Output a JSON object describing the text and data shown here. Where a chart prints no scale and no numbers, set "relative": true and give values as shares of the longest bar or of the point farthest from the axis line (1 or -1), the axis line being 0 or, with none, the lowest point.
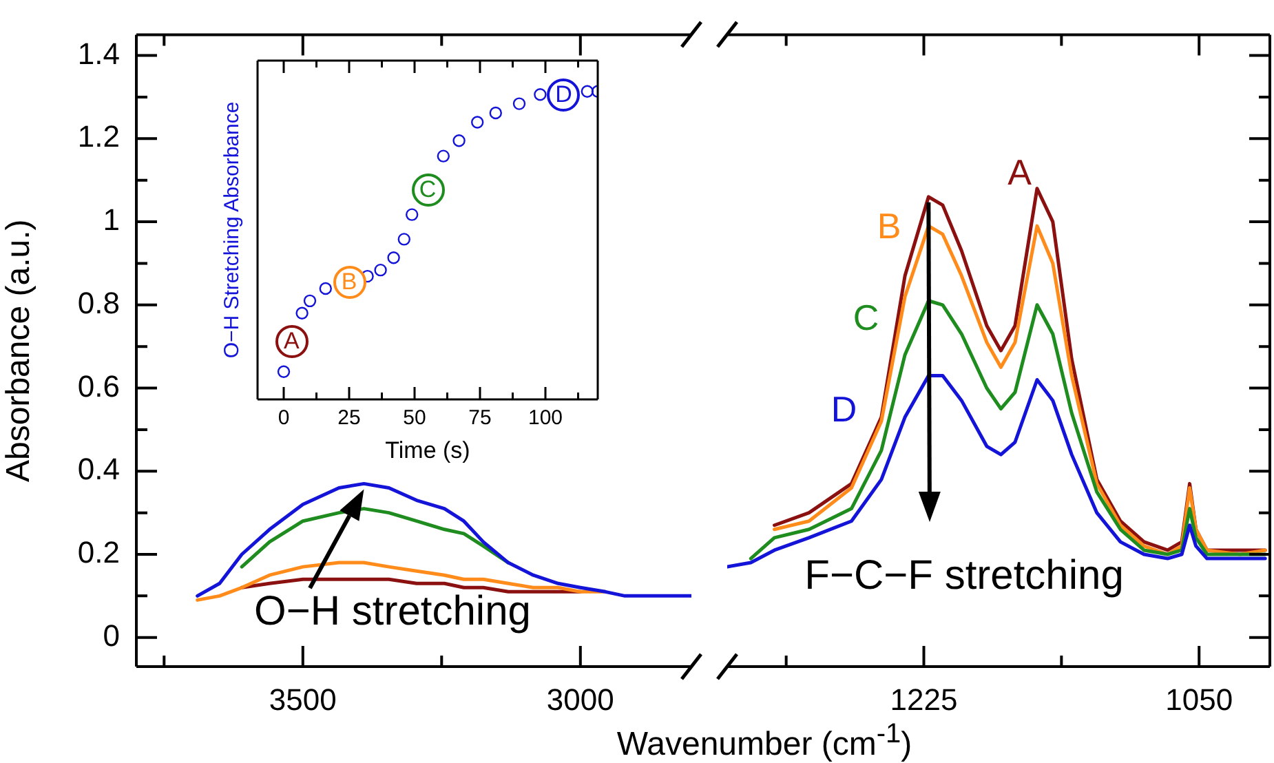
{
  "chart_data": [
    {
      "type": "line",
      "xlabel": "Wavenumber (cm$^{-1}$)",
      "ylabel": "Absorbance (a.u.)",
      "x": [
        3690,
        3650,
        3610,
        3560,
        3500,
        3435,
        3390,
        3345,
        3295,
        3245,
        3210,
        3175,
        3130,
        3085,
        3040,
        3000,
        2955,
        2920,
        2885,
        2850,
        2800
      ],
      "xlim": [
        3800,
        2800
      ],
      "xticks": [
        {
          "value": 3750,
          "label": null
        },
        3500,
        {
          "value": 3250,
          "label": null
        },
        3000
      ],
      "ylim": [
        -0.07,
        1.45
      ],
      "yticks": [
        0,
        {
          "value": 0.1,
          "label": null
        },
        0.2,
        {
          "value": 0.3,
          "label": null
        },
        0.4,
        {
          "value": 0.5,
          "label": null
        },
        0.6,
        {
          "value": 0.7,
          "label": null
        },
        0.8,
        {
          "value": 0.9,
          "label": null
        },
        1,
        {
          "value": 1.1,
          "label": null
        },
        1.2,
        {
          "value": 1.3,
          "label": null
        },
        1.4
      ],
      "series": [
        {
          "color": "#8b1010",
          "values": [
            null,
            null,
            0.12,
            0.13,
            0.14,
            0.14,
            0.14,
            0.14,
            0.13,
            0.13,
            0.12,
            0.12,
            0.11,
            0.11,
            0.11,
            0.11,
            null,
            null,
            null,
            null,
            null
          ]
        },
        {
          "color": "#ff8c1a",
          "values": [
            0.09,
            0.1,
            0.12,
            0.15,
            0.17,
            0.18,
            0.18,
            0.17,
            0.16,
            0.15,
            0.14,
            0.14,
            0.13,
            0.12,
            0.12,
            0.11,
            0.11,
            null,
            null,
            null,
            null
          ]
        },
        {
          "color": "#1e8c1e",
          "values": [
            null,
            null,
            0.17,
            0.23,
            0.28,
            0.3,
            0.31,
            0.3,
            0.28,
            0.26,
            0.25,
            0.22,
            0.18,
            null,
            null,
            null,
            null,
            null,
            null,
            null,
            null
          ]
        },
        {
          "color": "#1414d9",
          "values": [
            0.1,
            0.13,
            0.2,
            0.26,
            0.32,
            0.36,
            0.37,
            0.36,
            0.33,
            0.31,
            0.28,
            0.23,
            0.18,
            0.15,
            0.13,
            0.12,
            0.11,
            0.1,
            0.1,
            0.1,
            0.1
          ]
        }
      ],
      "annotations": [
        {
          "text": "O−H stretching",
          "x": 3390,
          "y": 0.37
        }
      ]
    },
    {
      "type": "line",
      "tick_labels": "x",
      "x": [
        1350,
        1335,
        1320,
        1298,
        1271,
        1252,
        1237,
        1222,
        1213,
        1201,
        1185,
        1176,
        1167,
        1153,
        1143,
        1131,
        1115,
        1100,
        1085,
        1070,
        1061,
        1056,
        1052,
        1045,
        1024,
        1008
      ],
      "xlim": [
        1350,
        1005
      ],
      "xticks": [
        {
          "value": 1312.5,
          "label": null
        },
        1225,
        {
          "value": 1137.5,
          "label": null
        },
        1050
      ],
      "ylim": [
        -0.07,
        1.45
      ],
      "yticks": [
        0,
        {
          "value": 0.1,
          "label": null
        },
        0.2,
        {
          "value": 0.3,
          "label": null
        },
        0.4,
        {
          "value": 0.5,
          "label": null
        },
        0.6,
        {
          "value": 0.7,
          "label": null
        },
        0.8,
        {
          "value": 0.9,
          "label": null
        },
        1,
        {
          "value": 1.1,
          "label": null
        },
        1.2,
        {
          "value": 1.3,
          "label": null
        },
        1.4
      ],
      "series": [
        {
          "name": "A",
          "color": "#8b1010",
          "values": [
            null,
            null,
            0.27,
            0.3,
            0.37,
            0.53,
            0.87,
            1.06,
            1.04,
            0.93,
            0.75,
            0.69,
            0.75,
            1.08,
            1.0,
            0.67,
            0.38,
            0.28,
            0.23,
            0.21,
            0.23,
            0.37,
            0.26,
            0.21,
            0.21,
            0.21
          ]
        },
        {
          "name": "B",
          "color": "#ff8c1a",
          "values": [
            null,
            null,
            0.26,
            0.28,
            0.36,
            0.52,
            0.82,
            0.99,
            0.97,
            0.87,
            0.71,
            0.65,
            0.71,
            0.99,
            0.9,
            0.63,
            0.37,
            0.27,
            0.22,
            0.2,
            0.22,
            0.36,
            0.26,
            0.21,
            0.2,
            0.21
          ]
        },
        {
          "name": "C",
          "color": "#1e8c1e",
          "values": [
            null,
            0.19,
            0.24,
            0.26,
            0.31,
            0.45,
            0.68,
            0.81,
            0.8,
            0.73,
            0.6,
            0.55,
            0.59,
            0.8,
            0.73,
            0.54,
            0.35,
            0.26,
            0.21,
            0.2,
            0.21,
            0.31,
            0.24,
            0.2,
            0.2,
            0.2
          ]
        },
        {
          "name": "D",
          "color": "#1414d9",
          "values": [
            0.17,
            0.18,
            0.21,
            0.24,
            0.28,
            0.38,
            0.53,
            0.63,
            0.63,
            0.57,
            0.46,
            0.44,
            0.47,
            0.62,
            0.57,
            0.44,
            0.3,
            0.23,
            0.2,
            0.19,
            0.2,
            0.27,
            0.22,
            0.19,
            0.19,
            0.19
          ]
        }
      ],
      "annotations": [
        "F−C−F stretching"
      ]
    },
    {
      "type": "scatter",
      "relative": true,
      "marker": "circle",
      "xlabel": "Time (s)",
      "ylabel": "O−H Stretching Absorbance",
      "x": [
        0,
        7,
        10,
        16,
        32,
        37,
        42,
        46,
        49,
        61,
        67,
        74,
        81,
        90,
        98,
        116,
        120
      ],
      "xlim": [
        -10,
        120
      ],
      "xticks": [
        0,
        {
          "value": 12.5,
          "label": null
        },
        25,
        {
          "value": 37.5,
          "label": null
        },
        50,
        {
          "value": 62.5,
          "label": null
        },
        75,
        {
          "value": 87.5,
          "label": null
        },
        100,
        {
          "value": 112.5,
          "label": null
        }
      ],
      "series": [
        {
          "color": "#1414d9",
          "values": [
            0.09,
            0.28,
            0.32,
            0.36,
            0.4,
            0.42,
            0.46,
            0.52,
            0.6,
            0.79,
            0.84,
            0.9,
            0.93,
            0.96,
            0.99,
            1.0,
            1.0
          ]
        }
      ],
      "annotations": [
        {
          "text": "A",
          "x": 3,
          "y": 0.19
        },
        {
          "text": "B",
          "x": 25,
          "y": 0.38
        },
        {
          "text": "C",
          "x": 55,
          "y": 0.68
        },
        {
          "text": "D",
          "x": 107,
          "y": 0.99
        }
      ]
    }
  ]
}
